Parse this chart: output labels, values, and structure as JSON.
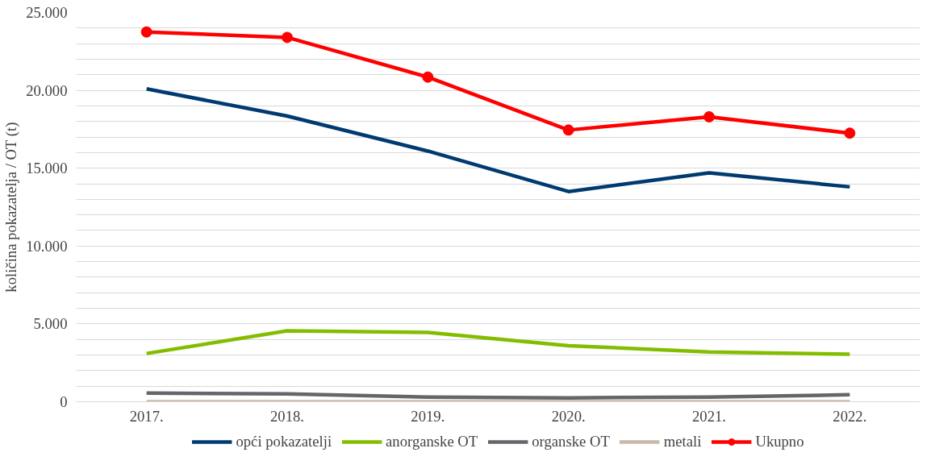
{
  "chart_data": {
    "type": "line",
    "ylabel": "količina pokazatelja / OT (t)",
    "categories": [
      "2017.",
      "2018.",
      "2019.",
      "2020.",
      "2021.",
      "2022."
    ],
    "series": [
      {
        "name": "opći pokazatelji",
        "color": "#003a70",
        "marker": "none",
        "values": [
          20100,
          18350,
          16100,
          13500,
          14700,
          13800
        ]
      },
      {
        "name": "anorganske OT",
        "color": "#84bd00",
        "marker": "none",
        "values": [
          3100,
          4550,
          4450,
          3600,
          3200,
          3050
        ]
      },
      {
        "name": "organske OT",
        "color": "#63666a",
        "marker": "none",
        "values": [
          550,
          500,
          300,
          250,
          300,
          450
        ]
      },
      {
        "name": "metali",
        "color": "#c9b9a9",
        "marker": "none",
        "values": [
          0,
          0,
          0,
          0,
          0,
          0
        ]
      },
      {
        "name": "Ukupno",
        "color": "#ff0000",
        "marker": "circle",
        "values": [
          23750,
          23400,
          20850,
          17450,
          18300,
          17250
        ]
      }
    ],
    "ylim": [
      0,
      25000
    ],
    "yticks": [
      {
        "value": 0,
        "label": "0"
      },
      {
        "value": 1000,
        "label": null
      },
      {
        "value": 2000,
        "label": null
      },
      {
        "value": 3000,
        "label": null
      },
      {
        "value": 4000,
        "label": null
      },
      {
        "value": 5000,
        "label": "5.000"
      },
      {
        "value": 6000,
        "label": null
      },
      {
        "value": 7000,
        "label": null
      },
      {
        "value": 8000,
        "label": null
      },
      {
        "value": 9000,
        "label": null
      },
      {
        "value": 10000,
        "label": "10.000"
      },
      {
        "value": 11000,
        "label": null
      },
      {
        "value": 12000,
        "label": null
      },
      {
        "value": 13000,
        "label": null
      },
      {
        "value": 14000,
        "label": null
      },
      {
        "value": 15000,
        "label": "15.000"
      },
      {
        "value": 16000,
        "label": null
      },
      {
        "value": 17000,
        "label": null
      },
      {
        "value": 18000,
        "label": null
      },
      {
        "value": 19000,
        "label": null
      },
      {
        "value": 20000,
        "label": "20.000"
      },
      {
        "value": 21000,
        "label": null
      },
      {
        "value": 22000,
        "label": null
      },
      {
        "value": 23000,
        "label": null
      },
      {
        "value": 24000,
        "label": null
      },
      {
        "value": 25000,
        "label": "25.000"
      }
    ],
    "grid": "y",
    "legend": "bottom",
    "line_style": "solid"
  }
}
